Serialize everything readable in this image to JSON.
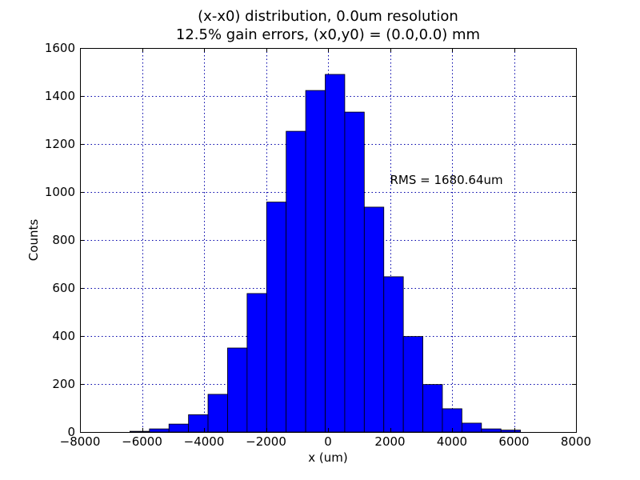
{
  "chart_data": {
    "type": "bar",
    "title_lines": [
      "(x-x0) distribution, 0.0um resolution",
      "12.5% gain errors, (x0,y0) = (0.0,0.0) mm"
    ],
    "xlabel": "x (um)",
    "ylabel": "Counts",
    "xlim": [
      -8000,
      8000
    ],
    "ylim": [
      0,
      1600
    ],
    "grid": true,
    "x_ticks": [
      -8000,
      -6000,
      -4000,
      -2000,
      0,
      2000,
      4000,
      6000,
      8000
    ],
    "x_tick_labels": [
      "−8000",
      "−6000",
      "−4000",
      "−2000",
      "0",
      "2000",
      "4000",
      "6000",
      "8000"
    ],
    "y_ticks": [
      0,
      200,
      400,
      600,
      800,
      1000,
      1200,
      1400,
      1600
    ],
    "y_tick_labels": [
      "0",
      "200",
      "400",
      "600",
      "800",
      "1000",
      "1200",
      "1400",
      "1600"
    ],
    "bin_edges": [
      -6390,
      -5760,
      -5130,
      -4500,
      -3870,
      -3240,
      -2610,
      -1980,
      -1350,
      -720,
      -90,
      540,
      1170,
      1800,
      2430,
      3060,
      3690,
      4320,
      4950,
      5580,
      6210
    ],
    "values": [
      3,
      13,
      33,
      72,
      157,
      350,
      577,
      958,
      1253,
      1423,
      1490,
      1333,
      937,
      647,
      398,
      198,
      97,
      37,
      13,
      8
    ],
    "bar_color": "#0000ff",
    "annotation": {
      "text": "RMS = 1680.64um",
      "x": 2000,
      "y": 1050
    }
  }
}
